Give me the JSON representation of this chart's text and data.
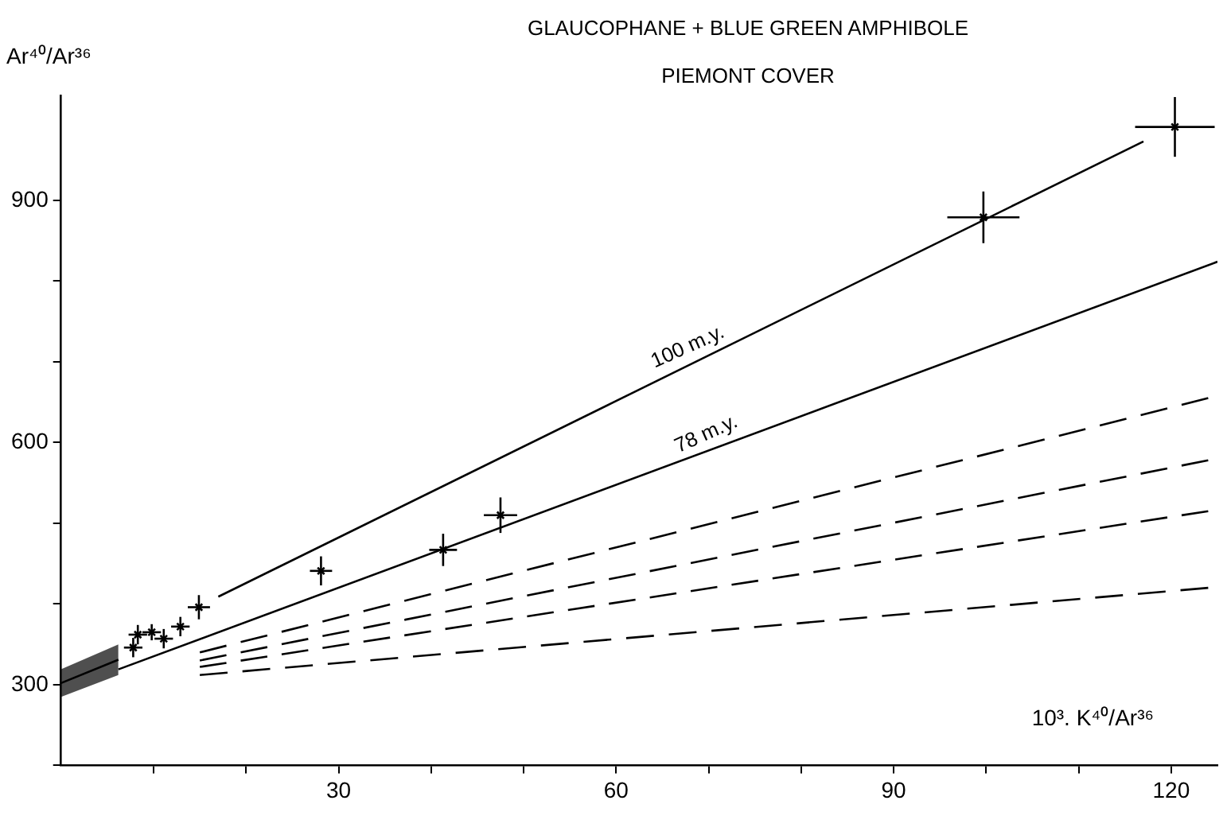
{
  "chart_data": {
    "type": "scatter",
    "title": "GLAUCOPHANE + BLUE GREEN AMPHIBOLE",
    "subtitle": "PIEMONT COVER",
    "xlabel": "10³. K⁴⁰/Ar³⁶",
    "ylabel": "Ar⁴⁰/Ar³⁶",
    "xlim": [
      0,
      125
    ],
    "xticks": [
      {
        "value": 10,
        "label": null
      },
      {
        "value": 20,
        "label": null
      },
      30,
      {
        "value": 40,
        "label": null
      },
      {
        "value": 50,
        "label": null
      },
      60,
      {
        "value": 70,
        "label": null
      },
      {
        "value": 80,
        "label": null
      },
      90,
      {
        "value": 100,
        "label": null
      },
      {
        "value": 110,
        "label": null
      },
      120
    ],
    "ylim": [
      200,
      1030
    ],
    "yticks": [
      {
        "value": 200,
        "label": null
      },
      300,
      {
        "value": 400,
        "label": null
      },
      {
        "value": 500,
        "label": null
      },
      600,
      {
        "value": 700,
        "label": null
      },
      {
        "value": 800,
        "label": null
      },
      900
    ],
    "legend": false,
    "series": [
      {
        "color": "#000000",
        "marker": "cross",
        "x": [
          7.8,
          8.3,
          9.8,
          11.1,
          12.9,
          14.9,
          28.1,
          41.3,
          47.5,
          99.7,
          120.4
        ],
        "values": [
          346,
          362,
          365,
          357,
          372,
          396,
          441,
          467,
          510,
          879,
          991
        ],
        "xerrors": [
          1,
          1,
          1,
          1,
          1,
          1.2,
          1.2,
          1.5,
          1.8,
          3.9,
          4.3
        ],
        "errors": [
          12,
          12,
          10,
          12,
          12,
          15,
          18,
          20,
          22,
          32,
          37
        ]
      },
      {
        "type": "line",
        "color": "#000000",
        "x": [
          17,
          117
        ],
        "values": [
          409,
          973
        ]
      },
      {
        "type": "line",
        "color": "#000000",
        "x": [
          6.2,
          125
        ],
        "values": [
          319,
          824
        ]
      },
      {
        "type": "line",
        "color": "#000000",
        "x": [
          0,
          6.2
        ],
        "values": [
          302,
          331
        ],
        "lower": [
          285,
          312
        ],
        "upper": [
          319,
          350
        ]
      },
      {
        "type": "line",
        "color": "#000000",
        "line_style": "dashed",
        "x": [
          15,
          124
        ],
        "values": [
          340,
          655
        ]
      },
      {
        "type": "line",
        "color": "#000000",
        "line_style": "dashed",
        "x": [
          15,
          124
        ],
        "values": [
          330,
          578
        ]
      },
      {
        "type": "line",
        "color": "#000000",
        "line_style": "dashed",
        "x": [
          15,
          124
        ],
        "values": [
          322,
          515
        ]
      },
      {
        "type": "line",
        "color": "#000000",
        "line_style": "dashed",
        "x": [
          15,
          124
        ],
        "values": [
          312,
          420
        ]
      }
    ],
    "annotations": [
      {
        "text": "100 m.y.",
        "x": 68,
        "y": 700
      },
      {
        "text": "78 m.y.",
        "x": 70,
        "y": 592
      }
    ]
  }
}
